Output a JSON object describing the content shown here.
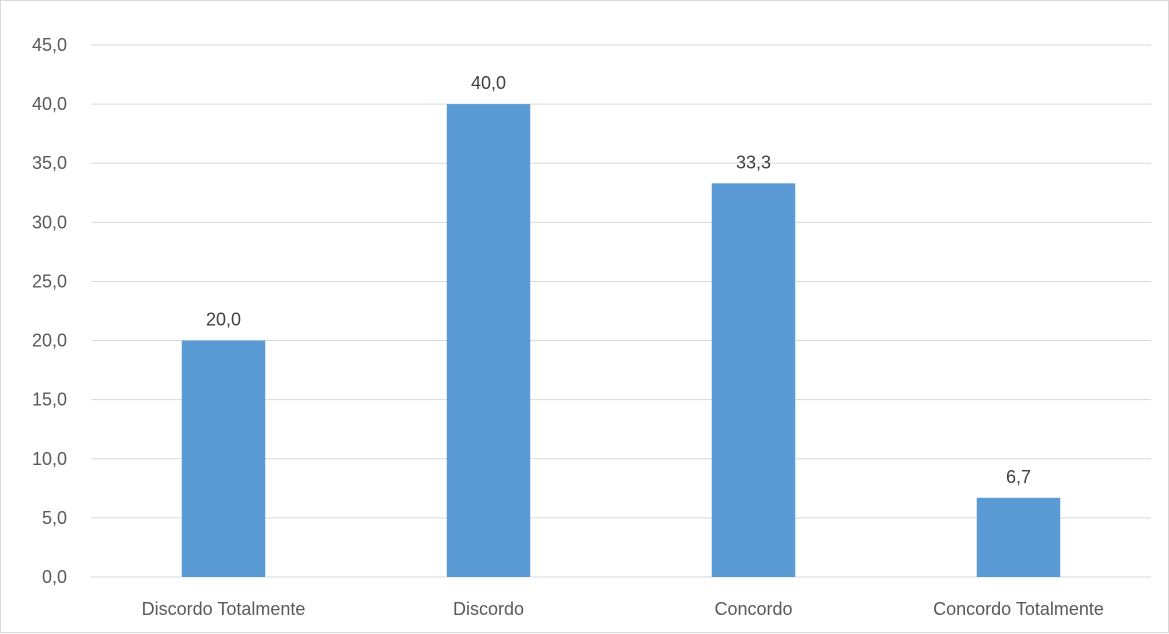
{
  "chart_data": {
    "type": "bar",
    "categories": [
      "Discordo Totalmente",
      "Discordo",
      "Concordo",
      "Concordo Totalmente"
    ],
    "values": [
      20.0,
      40.0,
      33.3,
      6.7
    ],
    "data_labels": [
      "20,0",
      "40,0",
      "33,3",
      "6,7"
    ],
    "y_ticks": [
      {
        "value": 0,
        "label": "0,0"
      },
      {
        "value": 5,
        "label": "5,0"
      },
      {
        "value": 10,
        "label": "10,0"
      },
      {
        "value": 15,
        "label": "15,0"
      },
      {
        "value": 20,
        "label": "20,0"
      },
      {
        "value": 25,
        "label": "25,0"
      },
      {
        "value": 30,
        "label": "30,0"
      },
      {
        "value": 35,
        "label": "35,0"
      },
      {
        "value": 40,
        "label": "40,0"
      },
      {
        "value": 45,
        "label": "45,0"
      }
    ],
    "ylim": [
      0,
      45
    ],
    "grid": true,
    "legend": "none",
    "bar_color": "#5b9bd5",
    "grid_color": "#d9d9d9"
  }
}
